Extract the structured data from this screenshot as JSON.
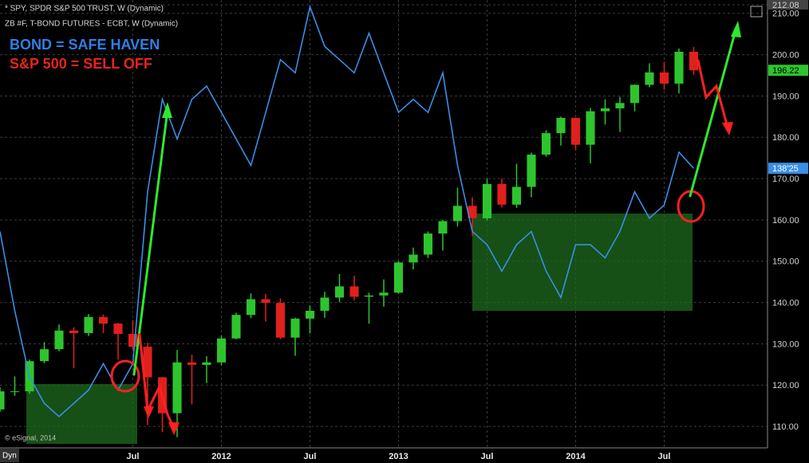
{
  "chart_data": {
    "type": "candlestick",
    "header": [
      "* SPY, SPDR S&P 500 TRUST, W (Dynamic)",
      "ZB #F, T-BOND FUTURES - ECBT, W (Dynamic)"
    ],
    "annotations": [
      {
        "text": "BOND = SAFE HAVEN",
        "color": "#2f7fe6"
      },
      {
        "text": "S&P 500 = SELL OFF",
        "color": "#e8241c"
      }
    ],
    "credit": "© eSignal, 2014",
    "mode_label": "Dyn",
    "x": [
      "2010-10",
      "2010-11",
      "2010-12",
      "2011-01",
      "2011-02",
      "2011-03",
      "2011-04",
      "2011-05",
      "2011-06",
      "2011-07",
      "2011-08",
      "2011-09",
      "2011-10",
      "2011-11",
      "2011-12",
      "2012-01",
      "2012-02",
      "2012-03",
      "2012-04",
      "2012-05",
      "2012-06",
      "2012-07",
      "2012-08",
      "2012-09",
      "2012-10",
      "2012-11",
      "2012-12",
      "2013-01",
      "2013-02",
      "2013-03",
      "2013-04",
      "2013-05",
      "2013-06",
      "2013-07",
      "2013-08",
      "2013-09",
      "2013-10",
      "2013-11",
      "2013-12",
      "2014-01",
      "2014-02",
      "2014-03",
      "2014-04",
      "2014-05",
      "2014-06",
      "2014-07",
      "2014-08",
      "2014-09"
    ],
    "xlim": [
      "2010-10",
      "2015-02"
    ],
    "xticks": [
      {
        "value": "2011-07",
        "label": "Jul"
      },
      {
        "value": "2012-01",
        "label": "2012"
      },
      {
        "value": "2012-07",
        "label": "Jul"
      },
      {
        "value": "2013-01",
        "label": "2013"
      },
      {
        "value": "2013-07",
        "label": "Jul"
      },
      {
        "value": "2014-01",
        "label": "2014"
      },
      {
        "value": "2014-07",
        "label": "Jul"
      }
    ],
    "ylim": [
      105.2,
      212.08
    ],
    "yticks": [
      {
        "value": 110,
        "label": "110.00"
      },
      {
        "value": 120,
        "label": "120.00"
      },
      {
        "value": 130,
        "label": "130.00"
      },
      {
        "value": 140,
        "label": "140.00"
      },
      {
        "value": 150,
        "label": "150.00"
      },
      {
        "value": 160,
        "label": "160.00"
      },
      {
        "value": 170,
        "label": "170.00"
      },
      {
        "value": 180,
        "label": "180.00"
      },
      {
        "value": 190,
        "label": "190.00"
      },
      {
        "value": 200,
        "label": "200.00"
      },
      {
        "value": 210,
        "label": "210.00"
      },
      212.08
    ],
    "y2lim": [
      117.75,
      151.15
    ],
    "grid": true,
    "series": [
      {
        "name": "* SPY, SPDR S&P 500 TRUST, W (Dynamic)",
        "type": "candlestick",
        "color_up": "#2ec42e",
        "color_down": "#e0201c",
        "last_value_label": "196.22",
        "open": [
          114.1,
          118.5,
          118.5,
          125.8,
          128.7,
          133.2,
          132.6,
          136.5,
          134.9,
          132.4,
          129.3,
          121.9,
          113.2,
          125.5,
          124.9,
          125.5,
          131.3,
          137.0,
          140.8,
          139.9,
          131.5,
          136.1,
          138.0,
          141.2,
          143.9,
          141.4,
          141.7,
          142.4,
          149.7,
          151.6,
          156.7,
          159.7,
          163.4,
          160.4,
          168.7,
          163.7,
          168.0,
          175.8,
          181.0,
          184.7,
          178.2,
          186.3,
          187.0,
          188.3,
          192.7,
          195.7,
          193.0,
          200.7
        ],
        "high": [
          119.5,
          122.1,
          126.2,
          130.4,
          134.7,
          134.0,
          137.2,
          137.1,
          135.1,
          135.7,
          130.3,
          122.0,
          128.5,
          127.4,
          127.0,
          132.0,
          137.5,
          142.2,
          142.1,
          141.0,
          136.3,
          139.3,
          142.6,
          146.9,
          146.5,
          142.4,
          145.6,
          150.0,
          153.3,
          157.2,
          160.0,
          167.8,
          165.5,
          170.0,
          170.0,
          173.6,
          176.3,
          181.7,
          185.0,
          184.8,
          187.1,
          189.2,
          189.8,
          192.8,
          197.9,
          198.3,
          201.5,
          201.9
        ],
        "low": [
          113.5,
          117.4,
          117.9,
          125.3,
          128.2,
          124.1,
          131.9,
          132.6,
          126.2,
          128.6,
          110.3,
          108.6,
          107.4,
          115.3,
          120.5,
          124.8,
          131.1,
          136.2,
          135.4,
          131.1,
          127.1,
          132.5,
          136.3,
          140.1,
          140.5,
          134.9,
          139.0,
          142.1,
          148.0,
          150.8,
          152.6,
          158.4,
          156.2,
          159.9,
          163.0,
          162.9,
          165.5,
          175.3,
          178.0,
          176.9,
          173.7,
          183.1,
          181.3,
          186.3,
          192.1,
          191.5,
          190.6,
          195.1
        ],
        "close": [
          118.5,
          118.5,
          125.8,
          128.7,
          133.2,
          132.6,
          136.5,
          134.9,
          132.4,
          129.3,
          121.9,
          113.2,
          125.5,
          124.9,
          125.5,
          131.3,
          137.0,
          140.8,
          139.9,
          131.5,
          136.1,
          138.0,
          141.2,
          143.9,
          141.4,
          141.7,
          142.4,
          149.7,
          151.6,
          156.7,
          159.7,
          163.4,
          160.4,
          168.7,
          163.7,
          168.0,
          175.8,
          181.0,
          184.7,
          178.2,
          186.3,
          187.0,
          188.3,
          192.7,
          195.7,
          193.0,
          200.7,
          196.22
        ]
      },
      {
        "name": "ZB #F, T-BOND FUTURES - ECBT, W (Dynamic)",
        "type": "line",
        "axis": "y2",
        "color": "#3a8ee6",
        "last_value_label": "138'25",
        "values": [
          134,
          128,
          123,
          121,
          120,
          121,
          122,
          124,
          122,
          124,
          137,
          144,
          141,
          144,
          145,
          143,
          141,
          139,
          143,
          147,
          146,
          151,
          148,
          147,
          146,
          149,
          146,
          143,
          144,
          143,
          146,
          139,
          134,
          133,
          131,
          133,
          134,
          131,
          129,
          133,
          133,
          132,
          134,
          137,
          135,
          136,
          140,
          138.78
        ]
      }
    ]
  }
}
